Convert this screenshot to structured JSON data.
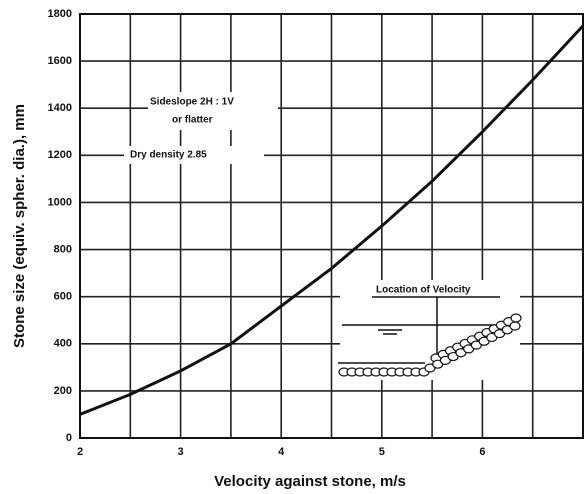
{
  "chart_data": {
    "type": "line",
    "x_label": "Velocity against stone, m/s",
    "y_label": "Stone size (equiv. spher. dia.), mm",
    "x": [
      2,
      2.5,
      3,
      3.5,
      4,
      4.5,
      5,
      5.5,
      6,
      6.5,
      7
    ],
    "values": [
      100,
      185,
      285,
      400,
      560,
      720,
      900,
      1090,
      1300,
      1520,
      1750
    ],
    "color": "#111111",
    "xlim": [
      2,
      7
    ],
    "xticks": [
      2,
      3,
      4,
      5,
      6
    ],
    "xminor": [
      2.5,
      3.5,
      4.5,
      5.5,
      6.5
    ],
    "ylim": [
      0,
      1800
    ],
    "yticks": [
      0,
      200,
      400,
      600,
      800,
      1000,
      1200,
      1400,
      1600,
      1800
    ],
    "grid": true,
    "annotations": [
      "Sideslope 2H : 1V",
      "or flatter",
      "Dry density 2.85",
      "Location of Velocity"
    ]
  }
}
